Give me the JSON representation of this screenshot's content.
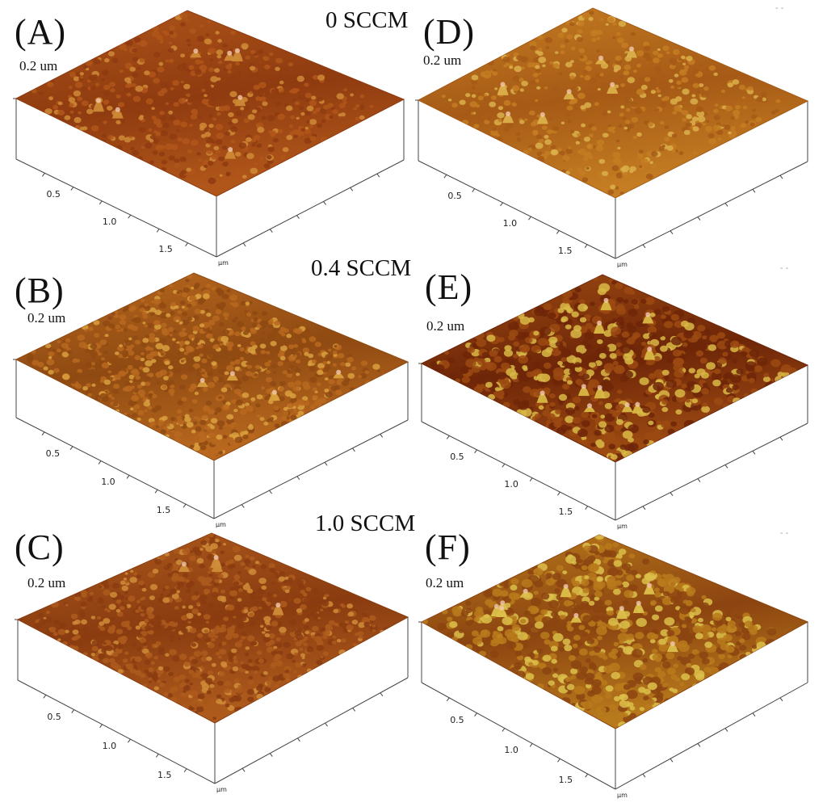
{
  "row_titles": [
    "0 SCCM",
    "0.4 SCCM",
    "1.0 SCCM"
  ],
  "panels": [
    {
      "label": "(A)",
      "z_label": "0.2 um",
      "colors": {
        "base": "#8f3b10",
        "mid": "#b0561a",
        "high": "#cf8a36"
      },
      "peaks": "few"
    },
    {
      "label": "(D)",
      "z_label": "0.2 um",
      "colors": {
        "base": "#a65a16",
        "mid": "#c47d22",
        "high": "#dbb04a"
      },
      "peaks": "few"
    },
    {
      "label": "(B)",
      "z_label": "0.2 um",
      "colors": {
        "base": "#8f4a12",
        "mid": "#b8681e",
        "high": "#d9a03e"
      },
      "peaks": "dense"
    },
    {
      "label": "(E)",
      "z_label": "0.2 um",
      "colors": {
        "base": "#6e2608",
        "mid": "#9c4a12",
        "high": "#d9b845"
      },
      "peaks": "grainy"
    },
    {
      "label": "(C)",
      "z_label": "0.2 um",
      "colors": {
        "base": "#8a3c10",
        "mid": "#ad5a1c",
        "high": "#cf8c38"
      },
      "peaks": "dense"
    },
    {
      "label": "(F)",
      "z_label": "0.2 um",
      "colors": {
        "base": "#8c4410",
        "mid": "#b87a1c",
        "high": "#dcc04a"
      },
      "peaks": "grainy"
    }
  ],
  "axis": {
    "ticks": [
      "0.5",
      "1.0",
      "1.5"
    ],
    "unit": "µm"
  },
  "stray_marks": [
    "- -",
    "- -",
    "- -"
  ]
}
